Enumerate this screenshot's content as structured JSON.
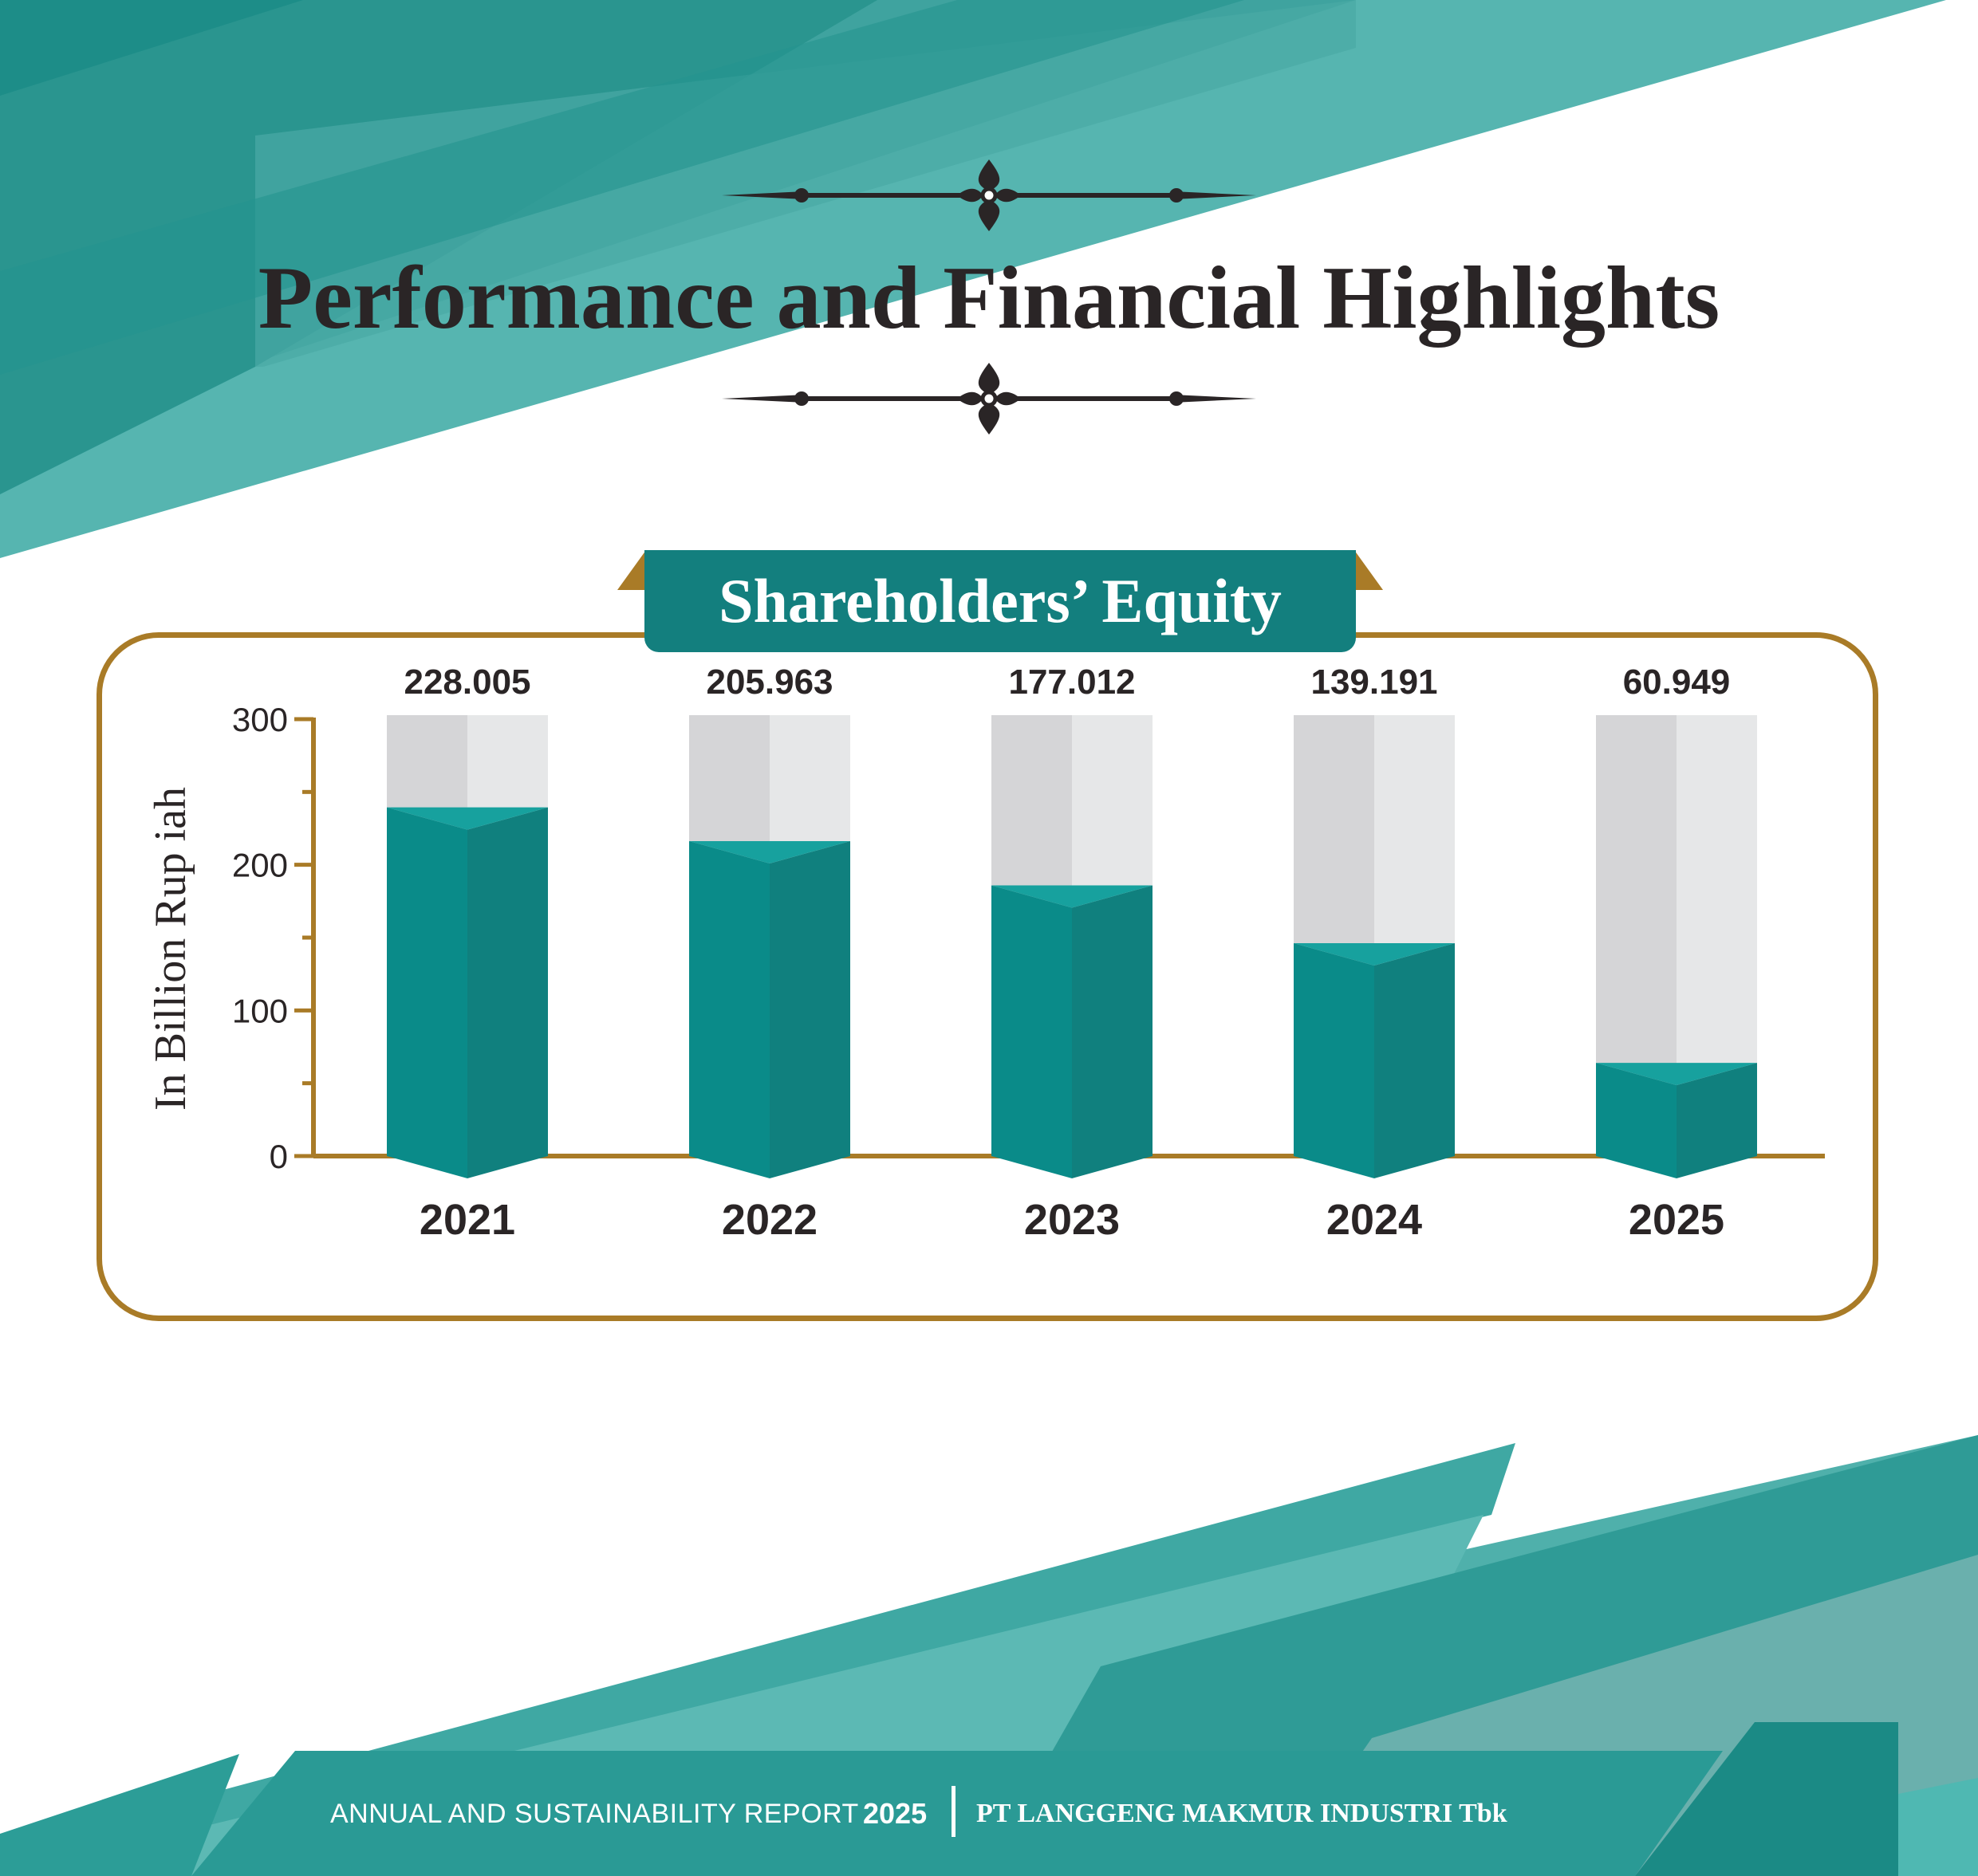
{
  "page": {
    "title": "Performance and Financial Highlights",
    "section_title": "Shareholders’ Equity"
  },
  "footer": {
    "report_label": "ANNUAL AND SUSTAINABILITY REPORT",
    "report_year": "2025",
    "company": "PT LANGGENG MAKMUR INDUSTRI Tbk"
  },
  "colors": {
    "teal": "#137f7e",
    "teal_light": "#0a8b89",
    "teal_dark": "#10807e",
    "gold": "#a97b27",
    "grey_left": "#d5d5d7",
    "grey_right": "#e6e7e8",
    "text_dark": "#2a2526"
  },
  "icons": {
    "ornament": "fleur-de-lis-divider-icon"
  },
  "chart_data": {
    "type": "bar",
    "title": "Shareholders’ Equity",
    "ylabel": "In Billion Rup iah",
    "xlabel": "",
    "categories": [
      "2021",
      "2022",
      "2023",
      "2024",
      "2025"
    ],
    "values": [
      228.005,
      205.963,
      177.012,
      139.191,
      60.949
    ],
    "value_labels": [
      "228.005",
      "205.963",
      "177.012",
      "139.191",
      "60.949"
    ],
    "ylim": [
      0,
      300
    ],
    "yticks": [
      "0",
      "100",
      "200",
      "300"
    ],
    "grid": false,
    "legend": "none"
  }
}
